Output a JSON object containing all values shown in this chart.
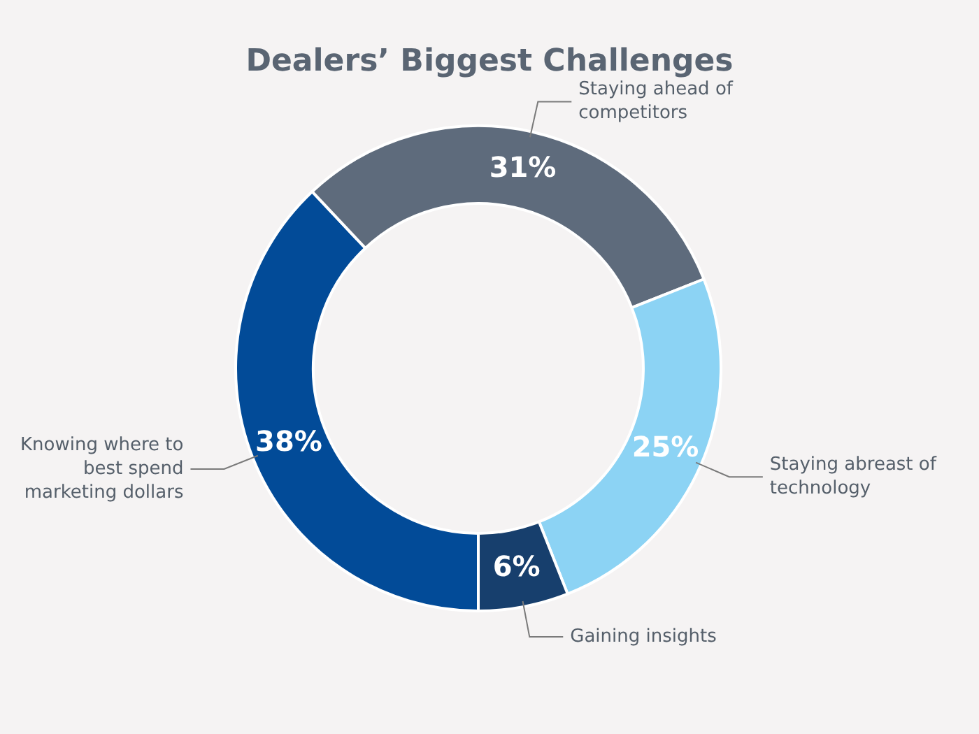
{
  "chart_data": {
    "type": "donut",
    "title": "Dealers’ Biggest Challenges",
    "categories": [
      "Knowing where to best spend marketing dollars",
      "Staying ahead of competitors",
      "Staying abreast of technology",
      "Gaining insights"
    ],
    "values": [
      38,
      31,
      25,
      6
    ],
    "value_labels": [
      "38%",
      "31%",
      "25%",
      "6%"
    ],
    "colors": [
      "#024b98",
      "#5e6b7c",
      "#8cd3f4",
      "#173f6d"
    ],
    "legend": false
  }
}
